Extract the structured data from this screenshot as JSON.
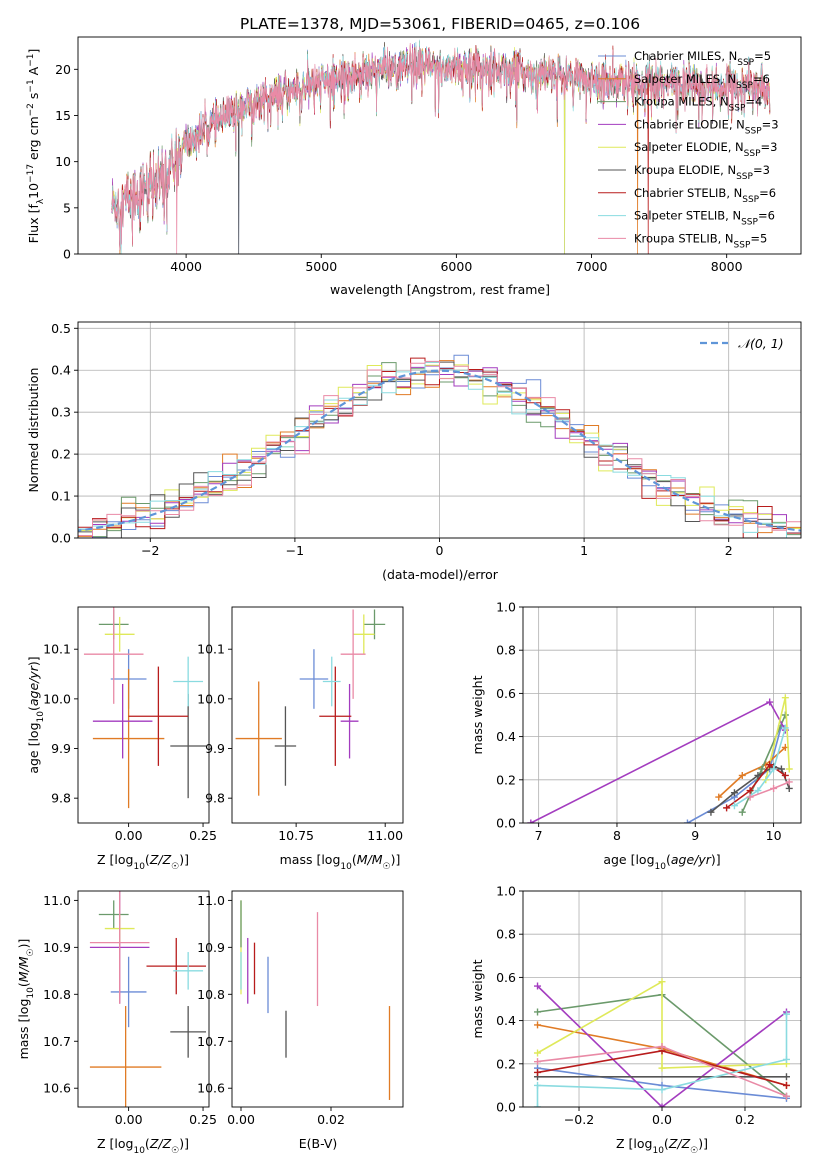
{
  "figure_title": "PLATE=1378, MJD=53061, FIBERID=0465, z=0.106",
  "colors": {
    "c1": "#6b8cd6",
    "c2": "#e07b25",
    "c3": "#6b9a6b",
    "c4": "#a33cbf",
    "c5": "#dfe95a",
    "c6": "#555555",
    "c7": "#b81c1c",
    "c8": "#8adbe0",
    "c9": "#e98aa6",
    "normal": "#5f95d8",
    "grid": "#b0b0b0"
  },
  "chart_data": [
    {
      "id": "spectrum",
      "type": "line",
      "title": "PLATE=1378, MJD=53061, FIBERID=0465, z=0.106",
      "xlabel": "wavelength [Angstrom, rest frame]",
      "ylabel": "Flux [f_λ10^-17 erg cm^-2 s^-1 A^-1]",
      "xlim": [
        3200,
        8550
      ],
      "ylim": [
        0,
        23.5
      ],
      "xticks": [
        4000,
        5000,
        6000,
        7000,
        8000
      ],
      "yticks": [
        0,
        5,
        10,
        15,
        20
      ],
      "grid": false,
      "legend_position": "upper right",
      "continuum": [
        [
          3450,
          5.2
        ],
        [
          3600,
          6.2
        ],
        [
          3700,
          7.0
        ],
        [
          3800,
          7.5
        ],
        [
          3900,
          9.5
        ],
        [
          3950,
          10.5
        ],
        [
          4000,
          11.8
        ],
        [
          4100,
          13.0
        ],
        [
          4200,
          14.2
        ],
        [
          4300,
          14.8
        ],
        [
          4400,
          15.8
        ],
        [
          4500,
          16.4
        ],
        [
          4600,
          17.0
        ],
        [
          4700,
          17.4
        ],
        [
          4800,
          17.8
        ],
        [
          4900,
          18.2
        ],
        [
          5000,
          18.6
        ],
        [
          5100,
          19.0
        ],
        [
          5200,
          19.2
        ],
        [
          5300,
          19.7
        ],
        [
          5400,
          20.2
        ],
        [
          5500,
          20.0
        ],
        [
          5600,
          20.2
        ],
        [
          5700,
          20.3
        ],
        [
          5800,
          20.4
        ],
        [
          5900,
          20.1
        ],
        [
          6000,
          20.4
        ],
        [
          6100,
          20.2
        ],
        [
          6200,
          20.1
        ],
        [
          6300,
          19.9
        ],
        [
          6400,
          19.9
        ],
        [
          6500,
          19.7
        ],
        [
          6600,
          19.5
        ],
        [
          6700,
          19.3
        ],
        [
          6800,
          19.2
        ],
        [
          6900,
          19.0
        ],
        [
          7000,
          18.9
        ],
        [
          7100,
          18.8
        ],
        [
          7200,
          18.7
        ],
        [
          7400,
          18.6
        ],
        [
          7600,
          18.5
        ],
        [
          7800,
          18.4
        ],
        [
          8000,
          18.2
        ],
        [
          8300,
          18.0
        ]
      ],
      "legend": [
        {
          "label": "Chabrier MILES, N_SSP=5",
          "color": "#6b8cd6"
        },
        {
          "label": "Salpeter MILES, N_SSP=6",
          "color": "#e07b25"
        },
        {
          "label": "Kroupa MILES, N_SSP=4",
          "color": "#6b9a6b"
        },
        {
          "label": "Chabrier ELODIE, N_SSP=3",
          "color": "#a33cbf"
        },
        {
          "label": "Salpeter ELODIE, N_SSP=3",
          "color": "#dfe95a"
        },
        {
          "label": "Kroupa ELODIE, N_SSP=3",
          "color": "#555555"
        },
        {
          "label": "Chabrier STELIB, N_SSP=6",
          "color": "#b81c1c"
        },
        {
          "label": "Salpeter STELIB, N_SSP=6",
          "color": "#8adbe0"
        },
        {
          "label": "Kroupa STELIB, N_SSP=5",
          "color": "#e98aa6"
        }
      ]
    },
    {
      "id": "residuals",
      "type": "histogram",
      "xlabel": "(data-model)/error",
      "ylabel": "Normed distribution",
      "xlim": [
        -2.5,
        2.5
      ],
      "ylim": [
        0,
        0.515
      ],
      "xticks": [
        -2,
        -1,
        0,
        1,
        2
      ],
      "xtick_labels": [
        "−2",
        "−1",
        "0",
        "1",
        "2"
      ],
      "yticks": [
        0.0,
        0.1,
        0.2,
        0.3,
        0.4,
        0.5
      ],
      "ytick_labels": [
        "0.0",
        "0.1",
        "0.2",
        "0.3",
        "0.4",
        "0.5"
      ],
      "bin_width": 0.1,
      "grid": true,
      "legend": [
        {
          "label": "𝒩(0, 1)",
          "style": "dashed",
          "color": "#5f95d8"
        }
      ],
      "reference_curve": "normal pdf, mean 0, sigma 1"
    },
    {
      "id": "age-vs-Z",
      "type": "errorbar",
      "xlabel": "Z [log10(Z/Z☉)]",
      "ylabel": "age [log10(age/yr)]",
      "xlim": [
        -0.17,
        0.27
      ],
      "ylim": [
        9.75,
        10.185
      ],
      "xticks": [
        0.0,
        0.25
      ],
      "xtick_labels": [
        "0.00",
        "0.25"
      ],
      "yticks": [
        9.8,
        9.9,
        10.0,
        10.1
      ],
      "ytick_labels": [
        "9.8",
        "9.9",
        "10.0",
        "10.1"
      ],
      "points": [
        {
          "x": 0.0,
          "y": 10.04,
          "xerr": 0.06,
          "yerr": 0.06,
          "color": "#6b8cd6"
        },
        {
          "x": 0.0,
          "y": 9.92,
          "xerr": 0.12,
          "yerr": 0.14,
          "color": "#e07b25"
        },
        {
          "x": -0.05,
          "y": 10.15,
          "xerr": 0.05,
          "yerr": 0.03,
          "color": "#6b9a6b"
        },
        {
          "x": -0.02,
          "y": 9.955,
          "xerr": 0.1,
          "yerr": 0.075,
          "color": "#a33cbf"
        },
        {
          "x": -0.03,
          "y": 10.13,
          "xerr": 0.05,
          "yerr": 0.035,
          "color": "#dfe95a"
        },
        {
          "x": 0.2,
          "y": 9.905,
          "xerr": 0.06,
          "yerr": 0.105,
          "color": "#555555"
        },
        {
          "x": 0.1,
          "y": 9.965,
          "xerr": 0.1,
          "yerr": 0.1,
          "color": "#b81c1c"
        },
        {
          "x": 0.2,
          "y": 10.035,
          "xerr": 0.05,
          "yerr": 0.05,
          "color": "#8adbe0"
        },
        {
          "x": -0.05,
          "y": 10.09,
          "xerr": 0.1,
          "yerr": 0.1,
          "color": "#e98aa6"
        }
      ]
    },
    {
      "id": "age-vs-mass",
      "type": "errorbar",
      "xlabel": "mass [log10(M/M☉)]",
      "ylabel": "",
      "xlim": [
        10.57,
        11.05
      ],
      "ylim": [
        9.75,
        10.185
      ],
      "xticks": [
        10.75,
        11.0
      ],
      "xtick_labels": [
        "10.75",
        "11.00"
      ],
      "yticks": [
        9.8,
        9.9,
        10.0,
        10.1
      ],
      "ytick_labels": [
        "9.8",
        "9.9",
        "10.0",
        "10.1"
      ],
      "points": [
        {
          "x": 10.8,
          "y": 10.04,
          "xerr": 0.04,
          "yerr": 0.06,
          "color": "#6b8cd6"
        },
        {
          "x": 10.645,
          "y": 9.92,
          "xerr": 0.065,
          "yerr": 0.115,
          "color": "#e07b25"
        },
        {
          "x": 10.97,
          "y": 10.15,
          "xerr": 0.03,
          "yerr": 0.03,
          "color": "#6b9a6b"
        },
        {
          "x": 10.9,
          "y": 9.955,
          "xerr": 0.025,
          "yerr": 0.075,
          "color": "#a33cbf"
        },
        {
          "x": 10.94,
          "y": 10.13,
          "xerr": 0.03,
          "yerr": 0.04,
          "color": "#dfe95a"
        },
        {
          "x": 10.72,
          "y": 9.905,
          "xerr": 0.03,
          "yerr": 0.08,
          "color": "#555555"
        },
        {
          "x": 10.86,
          "y": 9.965,
          "xerr": 0.045,
          "yerr": 0.1,
          "color": "#b81c1c"
        },
        {
          "x": 10.85,
          "y": 10.035,
          "xerr": 0.025,
          "yerr": 0.05,
          "color": "#8adbe0"
        },
        {
          "x": 10.91,
          "y": 10.09,
          "xerr": 0.035,
          "yerr": 0.09,
          "color": "#e98aa6"
        }
      ]
    },
    {
      "id": "weight-vs-age",
      "type": "line",
      "xlabel": "age [log10(age/yr)]",
      "ylabel": "mass weight",
      "xlim": [
        6.8,
        10.35
      ],
      "ylim": [
        0,
        1.0
      ],
      "xticks": [
        7,
        8,
        9,
        10
      ],
      "xtick_labels": [
        "7",
        "8",
        "9",
        "10"
      ],
      "yticks": [
        0.0,
        0.2,
        0.4,
        0.6,
        0.8,
        1.0
      ],
      "ytick_labels": [
        "0.0",
        "0.2",
        "0.4",
        "0.6",
        "0.8",
        "1.0"
      ],
      "grid": true,
      "series": [
        {
          "color": "#6b8cd6",
          "x": [
            8.9,
            9.5,
            9.95,
            10.1
          ],
          "y": [
            0.0,
            0.12,
            0.25,
            0.45
          ]
        },
        {
          "color": "#e07b25",
          "x": [
            9.3,
            9.6,
            9.9,
            10.15
          ],
          "y": [
            0.12,
            0.22,
            0.27,
            0.35
          ]
        },
        {
          "color": "#6b9a6b",
          "x": [
            9.6,
            9.85,
            10.15
          ],
          "y": [
            0.05,
            0.25,
            0.5
          ]
        },
        {
          "color": "#a33cbf",
          "x": [
            6.9,
            9.95,
            10.15
          ],
          "y": [
            0.0,
            0.56,
            0.43
          ]
        },
        {
          "color": "#dfe95a",
          "x": [
            9.9,
            10.15,
            10.2
          ],
          "y": [
            0.2,
            0.58,
            0.25
          ]
        },
        {
          "color": "#555555",
          "x": [
            9.2,
            9.5,
            9.8,
            10.0,
            10.1,
            10.2
          ],
          "y": [
            0.05,
            0.14,
            0.22,
            0.26,
            0.25,
            0.16
          ]
        },
        {
          "color": "#b81c1c",
          "x": [
            9.4,
            9.7,
            9.95,
            10.15
          ],
          "y": [
            0.07,
            0.15,
            0.27,
            0.22
          ]
        },
        {
          "color": "#8adbe0",
          "x": [
            9.5,
            9.8,
            10.0,
            10.15
          ],
          "y": [
            0.08,
            0.15,
            0.25,
            0.44
          ]
        },
        {
          "color": "#e98aa6",
          "x": [
            9.7,
            10.0,
            10.2
          ],
          "y": [
            0.12,
            0.16,
            0.19
          ]
        }
      ]
    },
    {
      "id": "mass-vs-Z",
      "type": "errorbar",
      "xlabel": "Z [log10(Z/Z☉)]",
      "ylabel": "mass [log10(M/M☉)]",
      "xlim": [
        -0.17,
        0.27
      ],
      "ylim": [
        10.56,
        11.02
      ],
      "xticks": [
        0.0,
        0.25
      ],
      "xtick_labels": [
        "0.00",
        "0.25"
      ],
      "yticks": [
        10.6,
        10.7,
        10.8,
        10.9,
        11.0
      ],
      "ytick_labels": [
        "10.6",
        "10.7",
        "10.8",
        "10.9",
        "11.0"
      ],
      "points": [
        {
          "x": 0.0,
          "y": 10.805,
          "xerr": 0.06,
          "yerr": 0.075,
          "color": "#6b8cd6"
        },
        {
          "x": -0.01,
          "y": 10.645,
          "xerr": 0.12,
          "yerr": 0.13,
          "color": "#e07b25"
        },
        {
          "x": -0.05,
          "y": 10.97,
          "xerr": 0.05,
          "yerr": 0.03,
          "color": "#6b9a6b"
        },
        {
          "x": -0.03,
          "y": 10.9,
          "xerr": 0.1,
          "yerr": 0.12,
          "color": "#a33cbf"
        },
        {
          "x": -0.03,
          "y": 10.94,
          "xerr": 0.05,
          "yerr": 0.03,
          "color": "#dfe95a"
        },
        {
          "x": 0.2,
          "y": 10.72,
          "xerr": 0.06,
          "yerr": 0.055,
          "color": "#555555"
        },
        {
          "x": 0.16,
          "y": 10.86,
          "xerr": 0.1,
          "yerr": 0.06,
          "color": "#b81c1c"
        },
        {
          "x": 0.2,
          "y": 10.85,
          "xerr": 0.05,
          "yerr": 0.04,
          "color": "#8adbe0"
        },
        {
          "x": -0.03,
          "y": 10.91,
          "xerr": 0.1,
          "yerr": 0.13,
          "color": "#e98aa6"
        }
      ]
    },
    {
      "id": "mass-vs-EBV",
      "type": "errorbar",
      "xlabel": "E(B-V)",
      "ylabel": "",
      "xlim": [
        -0.002,
        0.036
      ],
      "ylim": [
        10.56,
        11.02
      ],
      "xticks": [
        0.0,
        0.02
      ],
      "xtick_labels": [
        "0.00",
        "0.02"
      ],
      "yticks": [
        10.6,
        10.7,
        10.8,
        10.9,
        11.0
      ],
      "ytick_labels": [
        "10.6",
        "10.7",
        "10.8",
        "10.9",
        "11.0"
      ],
      "points": [
        {
          "x": 0.0,
          "y": 10.9,
          "xerr": 0.0,
          "yerr": 0.1,
          "color": "#dfe95a"
        },
        {
          "x": 0.0,
          "y": 10.95,
          "xerr": 0.0,
          "yerr": 0.05,
          "color": "#6b9a6b"
        },
        {
          "x": 0.0,
          "y": 10.85,
          "xerr": 0.0,
          "yerr": 0.04,
          "color": "#8adbe0"
        },
        {
          "x": 0.003,
          "y": 10.855,
          "xerr": 0.0,
          "yerr": 0.055,
          "color": "#b81c1c"
        },
        {
          "x": 0.0015,
          "y": 10.85,
          "xerr": 0.0,
          "yerr": 0.07,
          "color": "#a33cbf"
        },
        {
          "x": 0.006,
          "y": 10.82,
          "xerr": 0.0,
          "yerr": 0.06,
          "color": "#6b8cd6"
        },
        {
          "x": 0.01,
          "y": 10.715,
          "xerr": 0.0,
          "yerr": 0.05,
          "color": "#555555"
        },
        {
          "x": 0.017,
          "y": 10.875,
          "xerr": 0.0,
          "yerr": 0.1,
          "color": "#e98aa6"
        },
        {
          "x": 0.033,
          "y": 10.675,
          "xerr": 0.0,
          "yerr": 0.1,
          "color": "#e07b25"
        }
      ]
    },
    {
      "id": "weight-vs-Z",
      "type": "line",
      "xlabel": "Z [log10(Z/Z☉)]",
      "ylabel": "mass weight",
      "xlim": [
        -0.335,
        0.335
      ],
      "ylim": [
        0,
        1.0
      ],
      "xticks": [
        -0.2,
        0.0,
        0.2
      ],
      "xtick_labels": [
        "−0.2",
        "0.0",
        "0.2"
      ],
      "yticks": [
        0.0,
        0.2,
        0.4,
        0.6,
        0.8,
        1.0
      ],
      "ytick_labels": [
        "0.0",
        "0.2",
        "0.4",
        "0.6",
        "0.8",
        "1.0"
      ],
      "grid": true,
      "series": [
        {
          "color": "#6b8cd6",
          "x": [
            -0.3,
            0.0,
            0.3
          ],
          "y": [
            0.18,
            0.1,
            0.04
          ]
        },
        {
          "color": "#e07b25",
          "x": [
            -0.3,
            0.0,
            0.3
          ],
          "y": [
            0.38,
            0.27,
            0.1
          ]
        },
        {
          "color": "#6b9a6b",
          "x": [
            -0.3,
            0.0,
            0.3
          ],
          "y": [
            0.44,
            0.52,
            0.05
          ]
        },
        {
          "color": "#a33cbf",
          "x": [
            -0.3,
            0.0,
            0.3
          ],
          "y": [
            0.56,
            0.0,
            0.44
          ]
        },
        {
          "color": "#dfe95a",
          "x": [
            -0.3,
            0.0,
            0.0,
            0.3
          ],
          "y": [
            0.25,
            0.58,
            0.18,
            0.2
          ]
        },
        {
          "color": "#555555",
          "x": [
            -0.3,
            0.3
          ],
          "y": [
            0.14,
            0.14
          ]
        },
        {
          "color": "#b81c1c",
          "x": [
            -0.3,
            0.0,
            0.3
          ],
          "y": [
            0.16,
            0.26,
            0.1
          ]
        },
        {
          "color": "#8adbe0",
          "x": [
            -0.3,
            -0.3,
            0.0,
            0.3,
            0.3
          ],
          "y": [
            0.0,
            0.1,
            0.08,
            0.22,
            0.43
          ]
        },
        {
          "color": "#e98aa6",
          "x": [
            -0.3,
            0.0,
            0.3
          ],
          "y": [
            0.21,
            0.28,
            0.05
          ]
        }
      ]
    }
  ]
}
